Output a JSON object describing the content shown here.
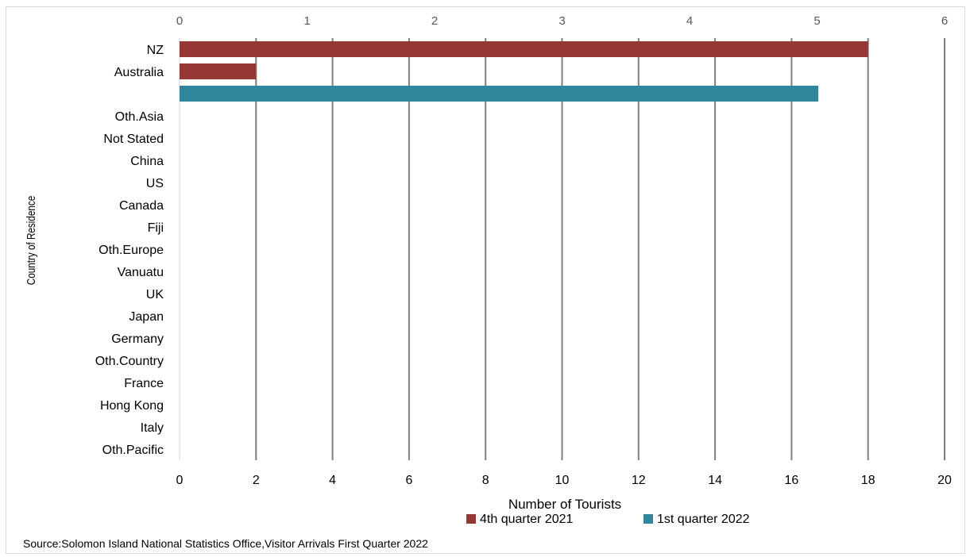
{
  "chart_data": {
    "type": "bar",
    "orientation": "horizontal",
    "title": "",
    "xlabel": "Number of Tourists",
    "ylabel": "Country of Residence",
    "categories": [
      "NZ",
      "Australia",
      "",
      "Oth.Asia",
      "Not Stated",
      "China",
      "US",
      "Canada",
      "Fiji",
      "Oth.Europe",
      "Vanuatu",
      "UK",
      "Japan",
      "Germany",
      "Oth.Country",
      "France",
      "Hong Kong",
      "Italy",
      "Oth.Pacific"
    ],
    "series": [
      {
        "name": "4th quarter 2021",
        "axis": "top",
        "color": "#953735",
        "values": [
          5.4,
          0.6,
          0,
          0,
          0,
          0,
          0,
          0,
          0,
          0,
          0,
          0,
          0,
          0,
          0,
          0,
          0,
          0,
          0
        ]
      },
      {
        "name": "1st quarter 2022",
        "axis": "bottom",
        "color": "#31859C",
        "values": [
          0,
          0,
          16.7,
          0,
          0,
          0,
          0,
          0,
          0,
          0,
          0,
          0,
          0,
          0,
          0,
          0,
          0,
          0,
          0
        ]
      }
    ],
    "x_bottom": {
      "lim": [
        0,
        20
      ],
      "ticks": [
        "0",
        "2",
        "4",
        "6",
        "8",
        "10",
        "12",
        "14",
        "16",
        "18",
        "20"
      ]
    },
    "x_top": {
      "lim": [
        0,
        6
      ],
      "ticks": [
        "0",
        "1",
        "2",
        "3",
        "4",
        "5",
        "6"
      ]
    },
    "grid": true,
    "legend_position": "bottom",
    "gridline_color": "#7f7f7f"
  },
  "source_note": "Source:Solomon Island National Statistics Office,Visitor Arrivals First Quarter 2022"
}
